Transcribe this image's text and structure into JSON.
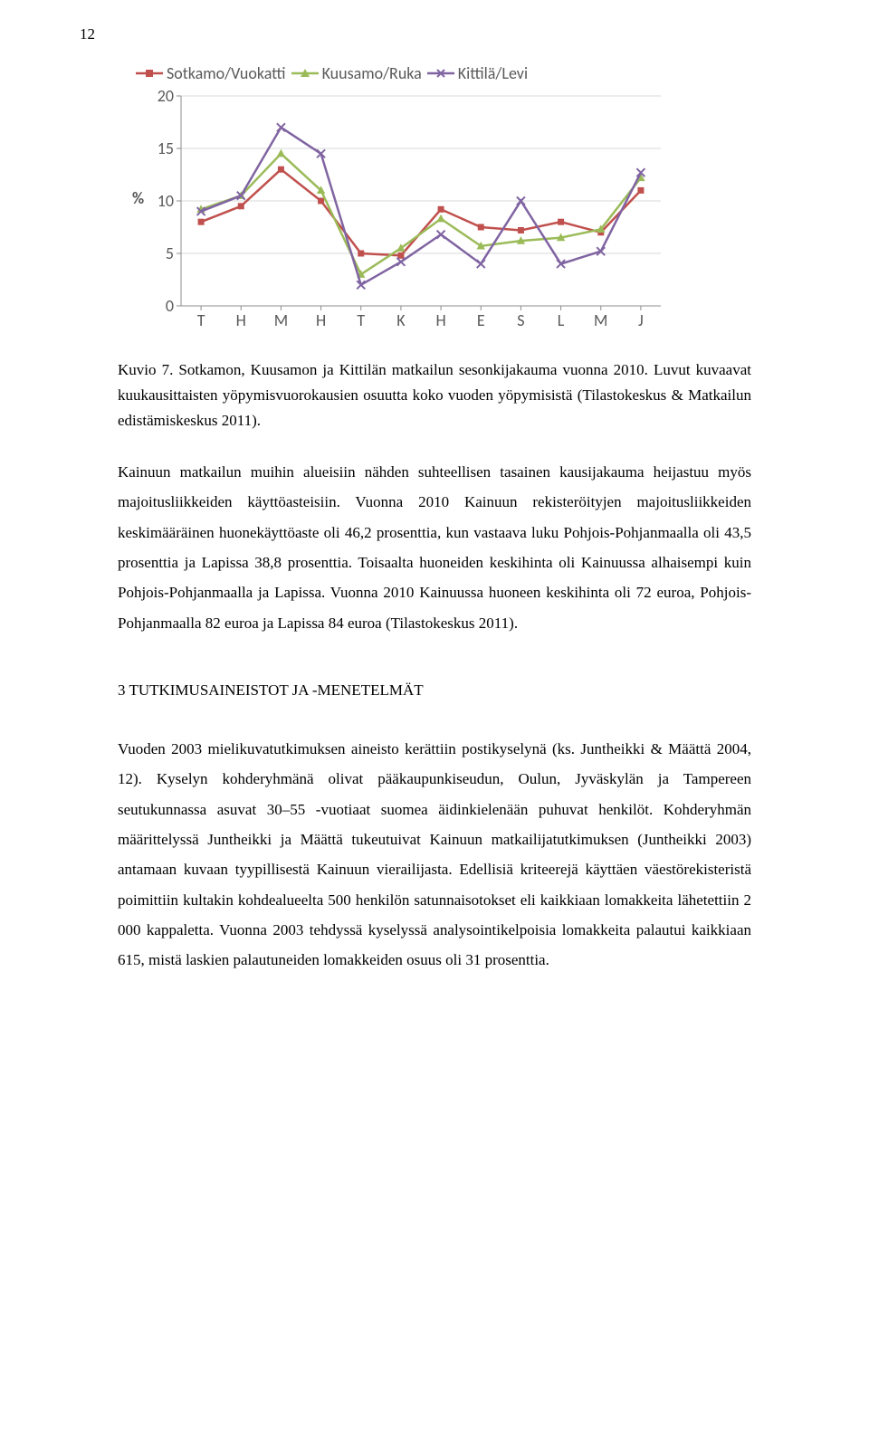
{
  "page_number": "12",
  "chart": {
    "type": "line",
    "background_color": "#ffffff",
    "gridline_color": "#d9d9d9",
    "axis_line_color": "#8c8c8c",
    "tick_font_color": "#595959",
    "tick_font_family": "Calibri",
    "tick_font_size": 18,
    "y_axis_label": "%",
    "y_label_fontsize": 18,
    "y_label_fontweight": "bold",
    "ylim": [
      0,
      20
    ],
    "ytick_positions": [
      0,
      5,
      10,
      15,
      20
    ],
    "ytick_labels": [
      "0",
      "5",
      "10",
      "15",
      "20"
    ],
    "x_categories": [
      "T",
      "H",
      "M",
      "H",
      "T",
      "K",
      "H",
      "E",
      "S",
      "L",
      "M",
      "J"
    ],
    "legend_font_family": "Calibri",
    "legend_font_size": 18,
    "legend_font_color": "#595959",
    "series": [
      {
        "name": "Sotkamo/Vuokatti",
        "color": "#c0504d",
        "marker": "square",
        "marker_size": 7,
        "line_width": 2.5,
        "values": [
          8.0,
          9.5,
          13.0,
          10.0,
          5.0,
          4.8,
          9.2,
          7.5,
          7.2,
          8.0,
          7.0,
          11.0
        ]
      },
      {
        "name": "Kuusamo/Ruka",
        "color": "#9bbb59",
        "marker": "triangle",
        "marker_size": 8,
        "line_width": 2.5,
        "values": [
          9.2,
          10.5,
          14.5,
          11.0,
          3.0,
          5.5,
          8.3,
          5.7,
          6.2,
          6.5,
          7.3,
          12.2
        ]
      },
      {
        "name": "Kittilä/Levi",
        "color": "#8064a2",
        "marker": "cross",
        "marker_size": 9,
        "line_width": 2.5,
        "values": [
          9.0,
          10.5,
          17.0,
          14.5,
          2.0,
          4.2,
          6.8,
          4.0,
          10.0,
          4.0,
          5.2,
          12.7
        ]
      }
    ]
  },
  "caption": "Kuvio 7. Sotkamon, Kuusamon ja Kittilän matkailun sesonkijakauma vuonna 2010. Luvut kuvaavat kuukausittaisten yöpymisvuorokausien osuutta koko vuoden yöpymisistä (Tilastokeskus & Matkailun edistämiskeskus 2011).",
  "paragraph1": "Kainuun matkailun muihin alueisiin nähden suhteellisen tasainen kausijakauma heijastuu myös majoitusliikkeiden käyttöasteisiin. Vuonna 2010 Kainuun rekisteröityjen majoitusliikkeiden keskimääräinen huonekäyttöaste oli 46,2 prosenttia, kun vastaava luku Pohjois-Pohjanmaalla oli 43,5 prosenttia ja Lapissa 38,8 prosenttia. Toisaalta huoneiden keskihinta oli Kainuussa alhaisempi kuin Pohjois-Pohjanmaalla ja Lapissa. Vuonna 2010 Kainuussa huoneen keskihinta oli 72 euroa, Pohjois-Pohjanmaalla 82 euroa ja Lapissa 84 euroa (Tilastokeskus 2011).",
  "section_title": "3 TUTKIMUSAINEISTOT JA -MENETELMÄT",
  "paragraph2": "Vuoden 2003 mielikuvatutkimuksen aineisto kerättiin postikyselynä (ks. Juntheikki & Määttä 2004, 12). Kyselyn kohderyhmänä olivat pääkaupunkiseudun, Oulun, Jyväskylän ja Tampereen seutukunnassa asuvat 30–55 -vuotiaat suomea äidinkielenään puhuvat henkilöt. Kohderyhmän määrittelyssä Juntheikki ja Määttä tukeutuivat Kainuun matkailijatutkimuksen (Juntheikki 2003) antamaan kuvaan tyypillisestä Kainuun vierailijasta. Edellisiä kriteerejä käyttäen väestörekisteristä poimittiin kultakin kohdealueelta 500 henkilön satunnaisotokset eli kaikkiaan lomakkeita lähetettiin 2 000 kappaletta. Vuonna 2003 tehdyssä kyselyssä analysointikelpoisia lomakkeita palautui kaikkiaan 615, mistä laskien palautuneiden lomakkeiden osuus oli 31 prosenttia."
}
